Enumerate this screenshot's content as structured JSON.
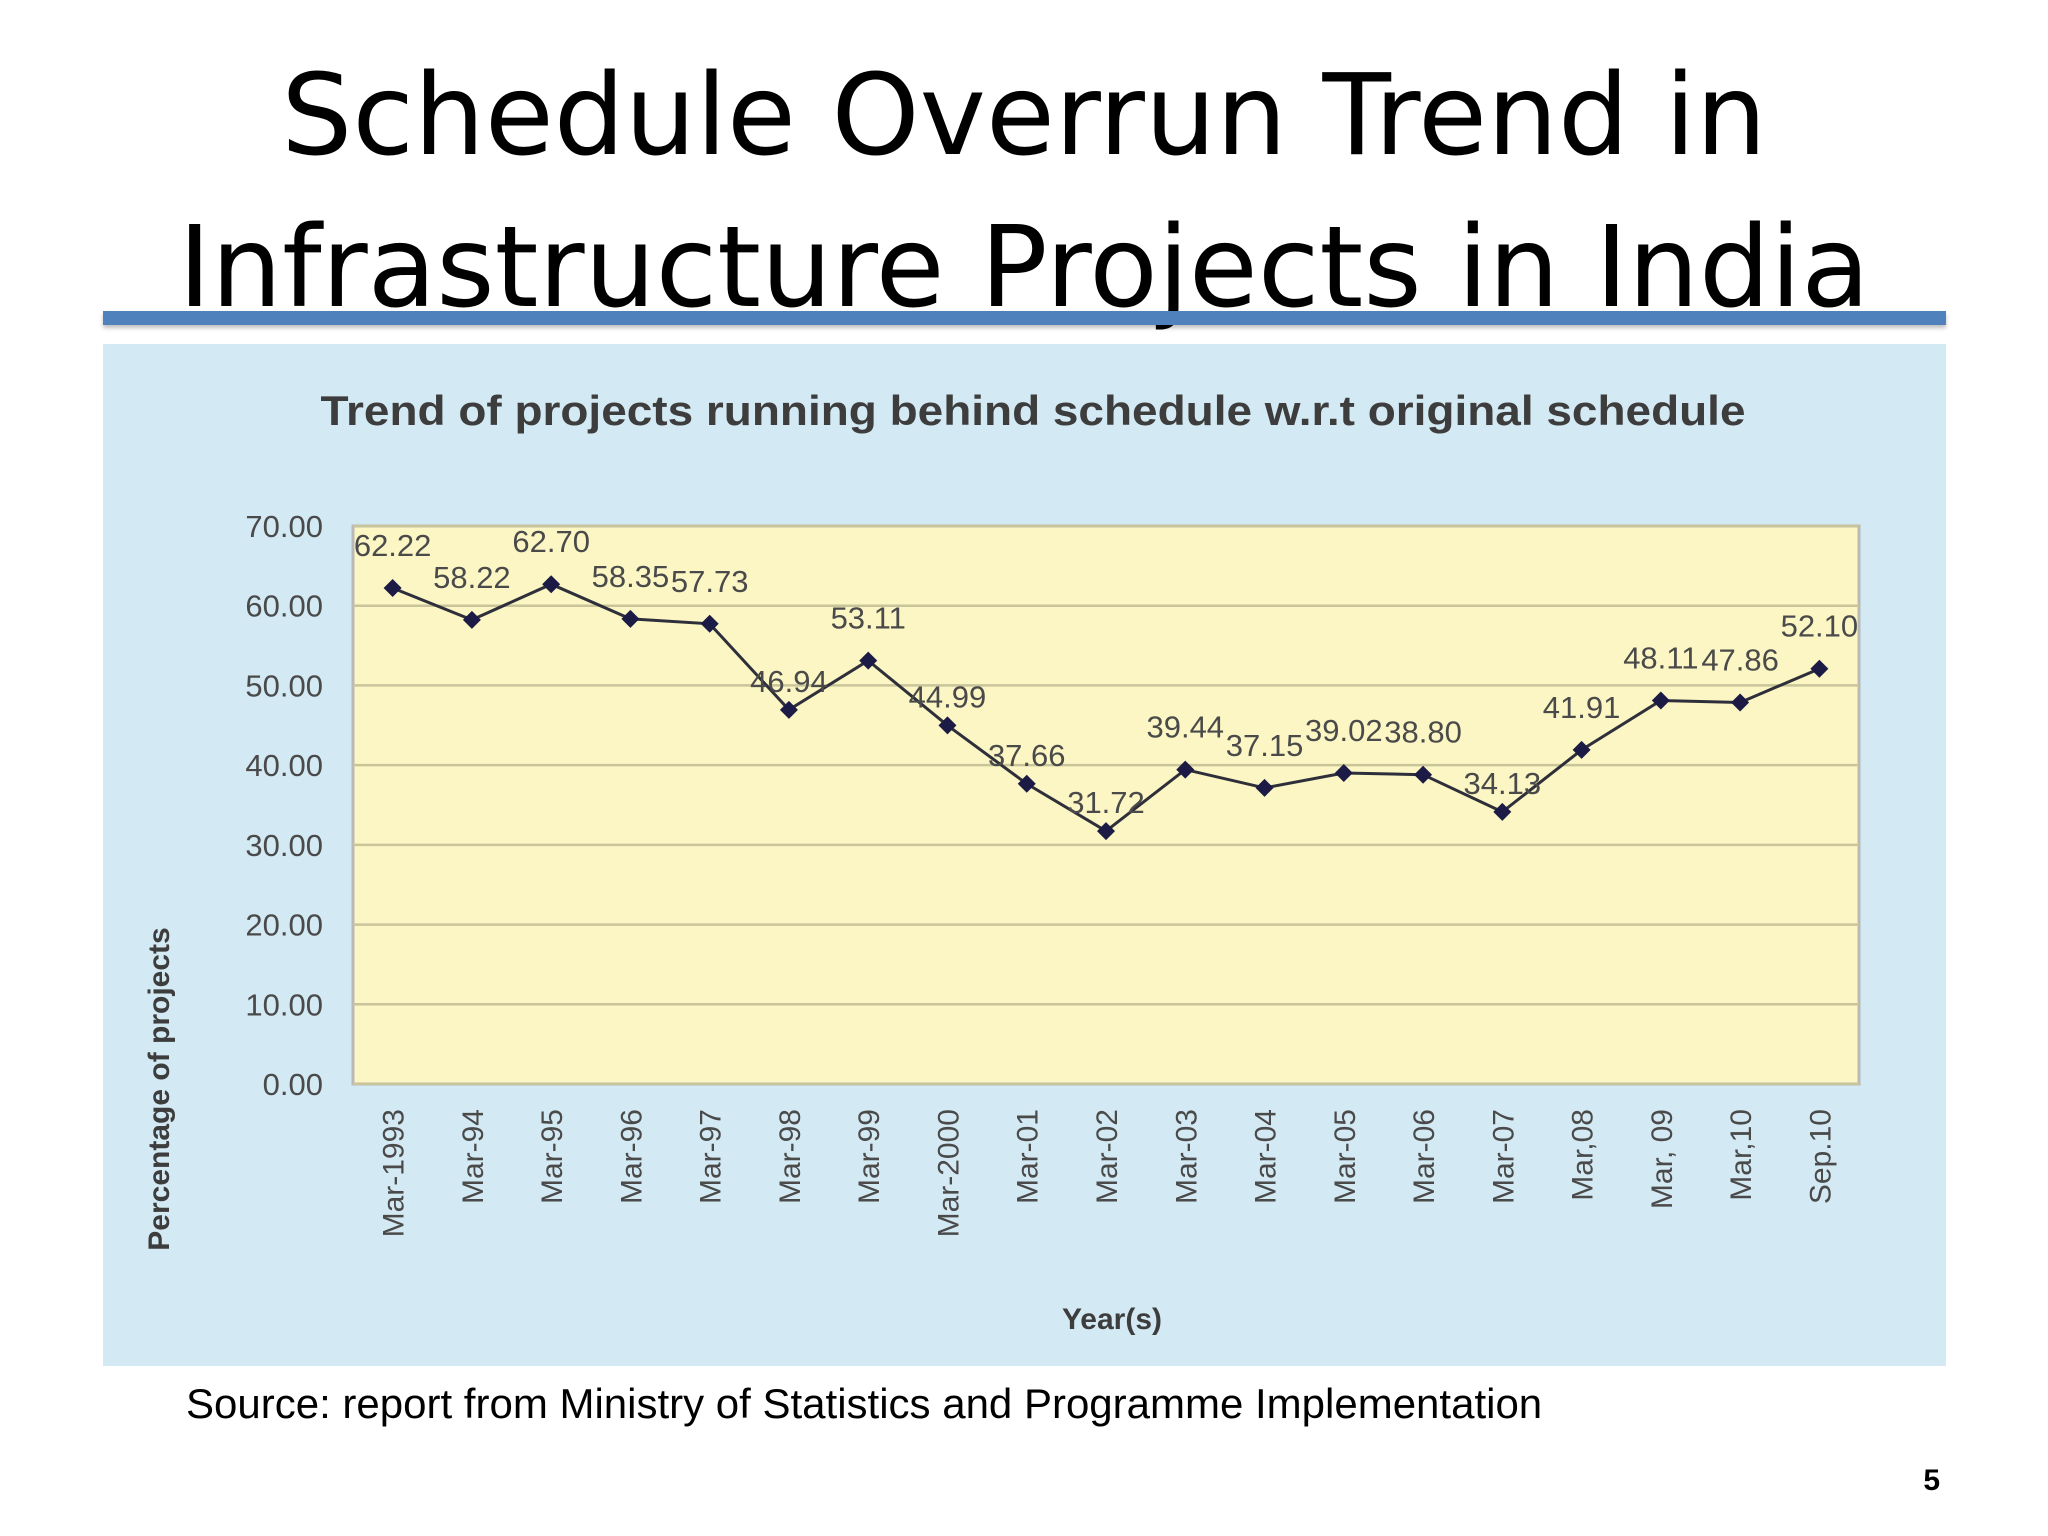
{
  "slide": {
    "title_line1": "Schedule Overrun Trend in",
    "title_line2": "Infrastructure Projects in India",
    "source": "Source: report from Ministry of Statistics and Programme Implementation",
    "page_number": "5",
    "accent_color": "#4f81bd"
  },
  "chart_data": {
    "type": "line",
    "title": "Trend of projects running behind schedule w.r.t original schedule",
    "xlabel": "Year(s)",
    "ylabel": "Percentage of projects",
    "categories": [
      "Mar-1993",
      "Mar-94",
      "Mar-95",
      "Mar-96",
      "Mar-97",
      "Mar-98",
      "Mar-99",
      "Mar-2000",
      "Mar-01",
      "Mar-02",
      "Mar-03",
      "Mar-04",
      "Mar-05",
      "Mar-06",
      "Mar-07",
      "Mar,08",
      "Mar, 09",
      "Mar,10",
      "Sep.10"
    ],
    "values": [
      62.22,
      58.22,
      62.7,
      58.35,
      57.73,
      46.94,
      53.11,
      44.99,
      37.66,
      31.72,
      39.44,
      37.15,
      39.02,
      38.8,
      34.13,
      41.91,
      48.11,
      47.86,
      52.1
    ],
    "data_labels": [
      "62.22",
      "58.22",
      "62.70",
      "58.35",
      "57.73",
      "46.94",
      "53.11",
      "44.99",
      "37.66",
      "31.72",
      "39.44",
      "37.15",
      "39.02",
      "38.80",
      "34.13",
      "41.91",
      "48.11",
      "47.86",
      "52.10"
    ],
    "y_ticks": [
      "0.00",
      "10.00",
      "20.00",
      "30.00",
      "40.00",
      "50.00",
      "60.00",
      "70.00"
    ],
    "ylim": [
      0,
      70
    ],
    "grid": true,
    "legend": "none",
    "colors": {
      "panel_background": "#d3e9f3",
      "plot_background": "#fbf6c3",
      "gridline": "#c9c49a",
      "line": "#2e2f3a",
      "marker": "#1b1b45",
      "text": "#4a4a4a",
      "title_text": "#3d3d3d"
    }
  }
}
